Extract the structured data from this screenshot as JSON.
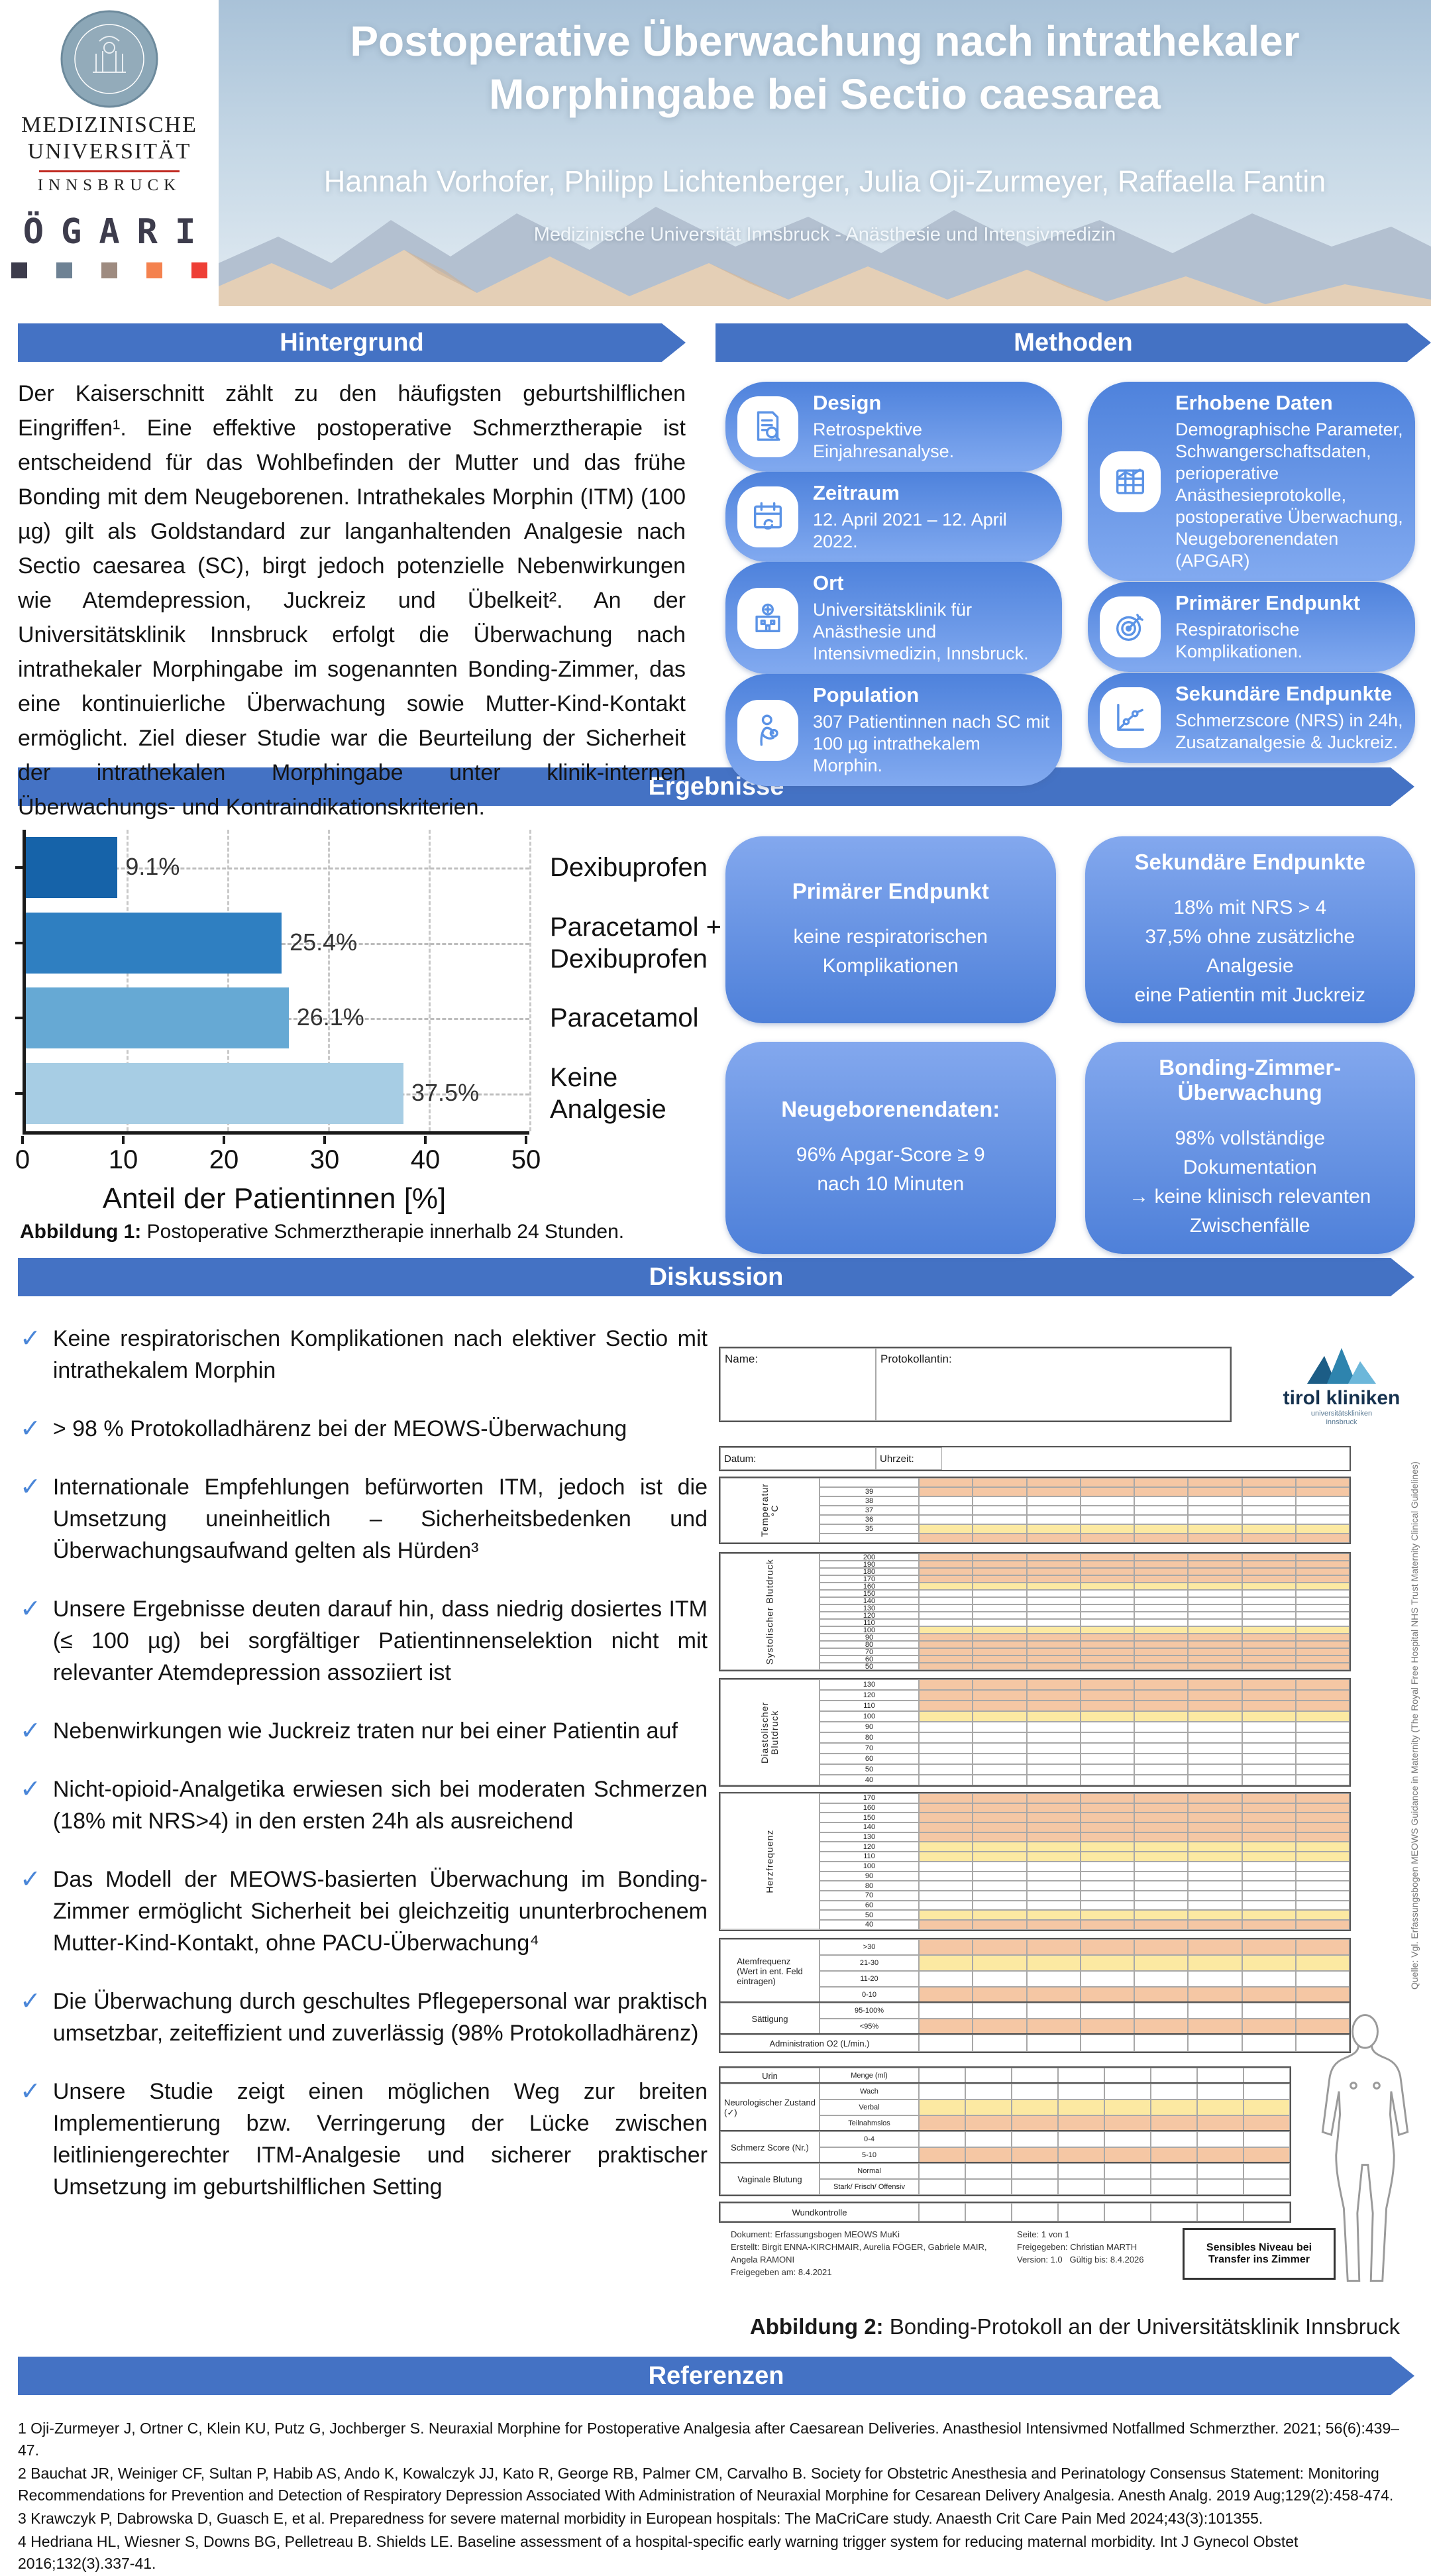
{
  "header": {
    "title": "Postoperative Überwachung nach intrathekaler Morphingabe bei Sectio caesarea",
    "authors": "Hannah Vorhofer, Philipp Lichtenberger, Julia Oji-Zurmeyer, Raffaella Fantin",
    "affiliation": "Medizinische Universität Innsbruck - Anästhesie und Intensivmedizin",
    "logo": {
      "line1": "MEDIZINISCHE",
      "line2": "UNIVERSITÄT",
      "line3": "INNSBRUCK",
      "ogari_letters": [
        "Ö",
        "G",
        "A",
        "R",
        "I"
      ],
      "ogari_colors": [
        "#3d3c4c",
        "#6e8294",
        "#9e8b80",
        "#f4824f",
        "#ee3f36"
      ]
    }
  },
  "hintergrund": {
    "title": "Hintergrund",
    "text": "Der Kaiserschnitt zählt zu den häufigsten geburtshilflichen Eingriffen¹. Eine effektive postoperative Schmerztherapie ist entscheidend für das Wohlbefinden der Mutter und das frühe Bonding mit dem Neugeborenen. Intrathekales Morphin (ITM) (100 µg) gilt als Goldstandard zur langanhaltenden Analgesie nach Sectio caesarea (SC), birgt jedoch potenzielle Nebenwirkungen wie Atemdepression, Juckreiz und Übelkeit². An der Universitätsklinik Innsbruck erfolgt die Überwachung nach intrathekaler Morphingabe im sogenannten Bonding-Zimmer, das eine kontinuierliche Überwachung sowie Mutter-Kind-Kontakt ermöglicht. Ziel dieser Studie war die Beurteilung der Sicherheit der intrathekalen Morphingabe unter klinik-internen Überwachungs- und Kontraindikationskriterien."
  },
  "methoden": {
    "title": "Methoden",
    "cards": [
      {
        "icon": "document-magnifier",
        "title": "Design",
        "text": "Retrospektive Einjahresanalyse.",
        "col": 0
      },
      {
        "icon": "calendar",
        "title": "Zeitraum",
        "text": "12. April 2021 – 12. April 2022.",
        "col": 0
      },
      {
        "icon": "hospital",
        "title": "Ort",
        "text": "Universitätsklinik für Anästhesie und Intensivmedizin, Innsbruck.",
        "col": 0
      },
      {
        "icon": "mother-baby",
        "title": "Population",
        "text": "307 Patientinnen nach SC mit 100 µg intrathekalem Morphin.",
        "col": 0
      },
      {
        "icon": "data-table",
        "title": "Erhobene Daten",
        "text": "Demographische Parameter, Schwangerschaftsdaten, perioperative Anästhesieprotokolle, postoperative Überwachung, Neugeborenendaten (APGAR)",
        "col": 1
      },
      {
        "icon": "target",
        "title": "Primärer Endpunkt",
        "text": "Respiratorische Komplikationen.",
        "col": 1
      },
      {
        "icon": "line-chart",
        "title": "Sekundäre Endpunkte",
        "text": "Schmerzscore (NRS) in 24h, Zusatzanalgesie & Juckreiz.",
        "col": 1
      }
    ]
  },
  "ergebnisse": {
    "title": "Ergebnisse",
    "boxes": [
      {
        "title": "Primärer Endpunkt",
        "lines": [
          "keine respiratorischen",
          "Komplikationen"
        ]
      },
      {
        "title": "Sekundäre Endpunkte",
        "lines": [
          "18% mit NRS > 4",
          "37,5% ohne zusätzliche Analgesie",
          "eine Patientin mit Juckreiz"
        ]
      },
      {
        "title": "Neugeborenendaten:",
        "lines": [
          "96% Apgar-Score ≥ 9",
          "nach 10 Minuten"
        ]
      },
      {
        "title": "Bonding-Zimmer-Überwachung",
        "lines": [
          "98% vollständige Dokumentation",
          "→ keine klinisch relevanten",
          "Zwischenfälle"
        ]
      }
    ],
    "figure1_label": "Abbildung 1:",
    "figure1_caption": " Postoperative Schmerztherapie innerhalb 24 Stunden."
  },
  "chart_data": {
    "type": "bar",
    "orientation": "horizontal",
    "categories": [
      "Dexibuprofen",
      "Paracetamol +\nDexibuprofen",
      "Paracetamol",
      "Keine\nAnalgesie"
    ],
    "values": [
      9.1,
      25.4,
      26.1,
      37.5
    ],
    "value_labels": [
      "9.1%",
      "25.4%",
      "26.1%",
      "37.5%"
    ],
    "bar_colors": [
      "#1663a9",
      "#2f7fc1",
      "#66a9d4",
      "#a7cde4"
    ],
    "xlabel": "Anteil der Patientinnen [%]",
    "xlim": [
      0,
      50
    ],
    "xticks": [
      0,
      10,
      20,
      30,
      40,
      50
    ],
    "grid": "dashed"
  },
  "diskussion": {
    "title": "Diskussion",
    "bullets": [
      "Keine respiratorischen Komplikationen nach elektiver Sectio mit intrathekalem Morphin",
      "> 98 % Protokolladhärenz bei der MEOWS-Überwachung",
      "Internationale Empfehlungen befürworten ITM, jedoch ist die Umsetzung uneinheitlich – Sicherheitsbedenken und Überwachungsaufwand gelten als Hürden³",
      "Unsere Ergebnisse deuten darauf hin, dass niedrig dosiertes ITM (≤ 100 µg) bei sorgfältiger Patientinnenselektion nicht mit relevanter Atemdepression assoziiert ist",
      "Nebenwirkungen wie Juckreiz traten nur bei einer Patientin auf",
      "Nicht-opioid-Analgetika erwiesen sich bei moderaten Schmerzen (18% mit NRS>4) in den ersten 24h als ausreichend",
      "Das Modell der MEOWS-basierten Überwachung im Bonding-Zimmer ermöglicht Sicherheit bei gleichzeitig ununterbrochenem Mutter-Kind-Kontakt, ohne PACU-Überwachung⁴",
      "Die Überwachung durch geschultes Pflegepersonal war praktisch umsetzbar, zeiteffizient und zuverlässig (98% Protokolladhärenz)",
      "Unsere Studie zeigt einen möglichen Weg zur breiten Implementierung bzw. Verringerung der Lücke zwischen leitliniengerechter ITM-Analgesie und sicherer praktischer Umsetzung im geburtshilflichen Setting"
    ]
  },
  "figure2": {
    "caption_label": "Abbildung 2:",
    "caption": " Bonding-Protokoll an der Universitätsklinik Innsbruck",
    "form": {
      "name_label": "Name:",
      "protokollantin_label": "Protokollantin:",
      "datum_label": "Datum:",
      "uhrzeit_label": "Uhrzeit:",
      "time_columns": 8,
      "logo": {
        "text": "tirol kliniken",
        "sub1": "universitätskliniken",
        "sub2": "innsbruck"
      },
      "vitals": [
        {
          "label": "Temperatur °C",
          "rows": [
            {
              "v": "",
              "c": "o"
            },
            {
              "v": "39",
              "c": "o"
            },
            {
              "v": "38",
              "c": "w"
            },
            {
              "v": "37",
              "c": "w"
            },
            {
              "v": "36",
              "c": "w"
            },
            {
              "v": "35",
              "c": "y"
            },
            {
              "v": "",
              "c": "o"
            }
          ]
        },
        {
          "label": "Systolischer Blutdruck",
          "rows": [
            {
              "v": "200",
              "c": "o"
            },
            {
              "v": "190",
              "c": "o"
            },
            {
              "v": "180",
              "c": "o"
            },
            {
              "v": "170",
              "c": "o"
            },
            {
              "v": "160",
              "c": "y"
            },
            {
              "v": "150",
              "c": "w"
            },
            {
              "v": "140",
              "c": "w"
            },
            {
              "v": "130",
              "c": "w"
            },
            {
              "v": "120",
              "c": "w"
            },
            {
              "v": "110",
              "c": "w"
            },
            {
              "v": "100",
              "c": "y"
            },
            {
              "v": "90",
              "c": "o"
            },
            {
              "v": "80",
              "c": "o"
            },
            {
              "v": "70",
              "c": "o"
            },
            {
              "v": "60",
              "c": "o"
            },
            {
              "v": "50",
              "c": "o"
            }
          ]
        },
        {
          "label": "Diastolischer Blutdruck",
          "rows": [
            {
              "v": "130",
              "c": "o"
            },
            {
              "v": "120",
              "c": "o"
            },
            {
              "v": "110",
              "c": "o"
            },
            {
              "v": "100",
              "c": "y"
            },
            {
              "v": "90",
              "c": "w"
            },
            {
              "v": "80",
              "c": "w"
            },
            {
              "v": "70",
              "c": "w"
            },
            {
              "v": "60",
              "c": "w"
            },
            {
              "v": "50",
              "c": "w"
            },
            {
              "v": "40",
              "c": "w"
            }
          ]
        },
        {
          "label": "Herzfrequenz",
          "rows": [
            {
              "v": "170",
              "c": "o"
            },
            {
              "v": "160",
              "c": "o"
            },
            {
              "v": "150",
              "c": "o"
            },
            {
              "v": "140",
              "c": "o"
            },
            {
              "v": "130",
              "c": "o"
            },
            {
              "v": "120",
              "c": "y"
            },
            {
              "v": "110",
              "c": "y"
            },
            {
              "v": "100",
              "c": "w"
            },
            {
              "v": "90",
              "c": "w"
            },
            {
              "v": "80",
              "c": "w"
            },
            {
              "v": "70",
              "c": "w"
            },
            {
              "v": "60",
              "c": "w"
            },
            {
              "v": "50",
              "c": "y"
            },
            {
              "v": "40",
              "c": "o"
            }
          ]
        }
      ],
      "score_tables": [
        {
          "label": "Atemfrequenz\n(Wert in ent. Feld\neintragen)",
          "rows": [
            {
              "v": ">30",
              "c": "o"
            },
            {
              "v": "21-30",
              "c": "y"
            },
            {
              "v": "11-20",
              "c": "w"
            },
            {
              "v": "0-10",
              "c": "o"
            }
          ]
        },
        {
          "label": "Sättigung",
          "rows": [
            {
              "v": "95-100%",
              "c": "w"
            },
            {
              "v": "<95%",
              "c": "o"
            }
          ]
        }
      ],
      "admin_label": "Administration O2 (L/min.)",
      "lower_tables": [
        {
          "label": "Urin",
          "rows": [
            {
              "v": "Menge (ml)",
              "c": "w"
            }
          ]
        },
        {
          "label": "Neurologischer Zustand\n(✓)",
          "rows": [
            {
              "v": "Wach",
              "c": "w"
            },
            {
              "v": "Verbal",
              "c": "y"
            },
            {
              "v": "Teilnahmslos",
              "c": "o"
            }
          ]
        },
        {
          "label": "Schmerz Score (Nr.)",
          "rows": [
            {
              "v": "0-4",
              "c": "w"
            },
            {
              "v": "5-10",
              "c": "o"
            }
          ]
        },
        {
          "label": "Vaginale Blutung",
          "rows": [
            {
              "v": "Normal",
              "c": "w"
            },
            {
              "v": "Stark/ Frisch/ Offensiv",
              "c": "w"
            }
          ]
        }
      ],
      "wundkontrolle_label": "Wundkontrolle",
      "footer": {
        "dokument": "Dokument: Erfassungsbogen MEOWS MuKi",
        "erstellt": "Erstellt: Birgit ENNA-KIRCHMAIR, Aurelia FÖGER, Gabriele MAIR, Angela RAMONI",
        "freigegeben_am": "Freigegeben am: 8.4.2021",
        "seite": "Seite: 1 von 1",
        "freigegeben": "Freigegeben: Christian MARTH",
        "version": "Version: 1.0",
        "gueltig": "Gültig bis: 8.4.2026",
        "sensibles": "Sensibles Niveau bei Transfer ins Zimmer"
      },
      "quelle": "Quelle: Vgl. Erfassungsbogen MEOWS Guidance in Maternity (The Royal Free Hospital NHS Trust Maternity Clinical Guidelines)"
    }
  },
  "referenzen": {
    "title": "Referenzen",
    "items": [
      "1 Oji-Zurmeyer J, Ortner C, Klein KU, Putz G, Jochberger S. Neuraxial Morphine for Postoperative Analgesia after Caesarean Deliveries. Anasthesiol Intensivmed Notfallmed Schmerzther. 2021; 56(6):439–47.",
      "2 Bauchat JR, Weiniger CF, Sultan P, Habib AS, Ando K, Kowalczyk JJ, Kato R, George RB, Palmer CM, Carvalho B. Society for Obstetric Anesthesia and Perinatology Consensus Statement: Monitoring Recommendations for Prevention and Detection of Respiratory Depression Associated With Administration of Neuraxial Morphine for Cesarean Delivery Analgesia. Anesth Analg. 2019 Aug;129(2):458-474.",
      "3 Krawczyk P, Dabrowska D, Guasch E, et al. Preparedness for severe maternal morbidity in European hospitals: The MaCriCare study. Anaesth Crit Care Pain Med 2024;43(3):101355.",
      "4 Hedriana HL, Wiesner S, Downs BG, Pelletreau B. Shields LE. Baseline assessment of a hospital-specific early warning trigger system for reducing maternal morbidity. Int J Gynecol Obstet 2016;132(3).337-41."
    ]
  }
}
